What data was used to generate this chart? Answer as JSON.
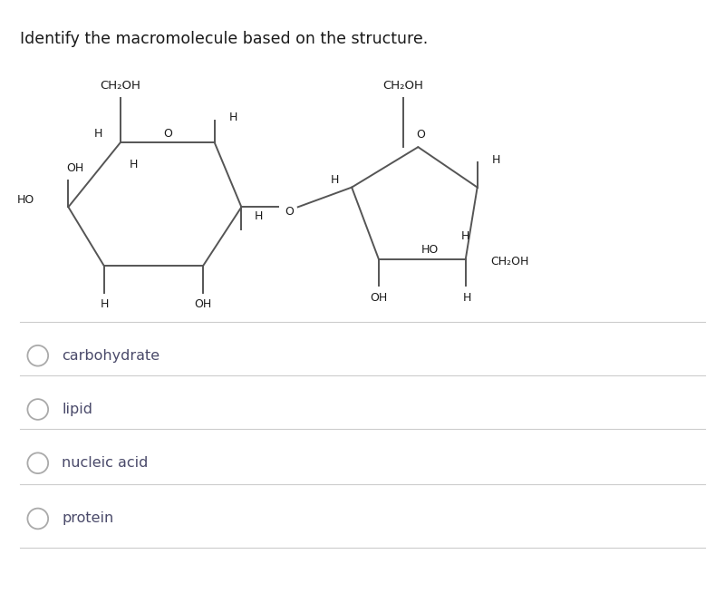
{
  "title": "Identify the macromolecule based on the structure.",
  "title_fontsize": 13,
  "options": [
    "carbohydrate",
    "lipid",
    "nucleic acid",
    "protein"
  ],
  "bg_color": "#ffffff",
  "text_color": "#1a1a1a",
  "line_color": "#555555",
  "opt_text_color": "#4a4a6a"
}
